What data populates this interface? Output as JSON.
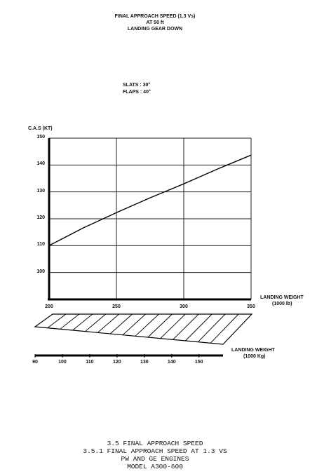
{
  "header": {
    "line1": "FINAL APPROACH SPEED (1.3 Vs)",
    "line2": "AT 50 ft",
    "line3": "LANDING GEAR DOWN"
  },
  "config": {
    "slats": "SLATS : 30°",
    "flaps": "FLAPS : 40°"
  },
  "caption": {
    "line1": "3.5 FINAL APPROACH SPEED",
    "line2": "3.5.1 FINAL APPROACH SPEED AT 1.3 VS",
    "line3": "PW AND GE ENGINES",
    "line4": "MODEL A300-600"
  },
  "chart_data": {
    "type": "line",
    "ylabel": "C.A.S (KT)",
    "xlabel_line1": "LANDING WEIGHT",
    "xlabel_line2": "(1000 lb)",
    "xlim": [
      200,
      350
    ],
    "ylim": [
      90,
      150
    ],
    "x_ticks": [
      "200",
      "250",
      "300",
      "350"
    ],
    "y_ticks": [
      "100",
      "110",
      "120",
      "130",
      "140",
      "150"
    ],
    "grid": true,
    "series": [
      {
        "x": [
          200,
          225,
          250,
          275,
          300,
          325,
          350
        ],
        "y": [
          110,
          116.5,
          122.3,
          127.8,
          133,
          138.5,
          143.7
        ]
      }
    ],
    "secondary_axis": {
      "label_line1": "LANDING WEIGHT",
      "label_line2": "(1000 Kg)",
      "ticks": [
        "90",
        "100",
        "110",
        "120",
        "130",
        "140",
        "150"
      ],
      "range": [
        90,
        158.8
      ]
    }
  }
}
